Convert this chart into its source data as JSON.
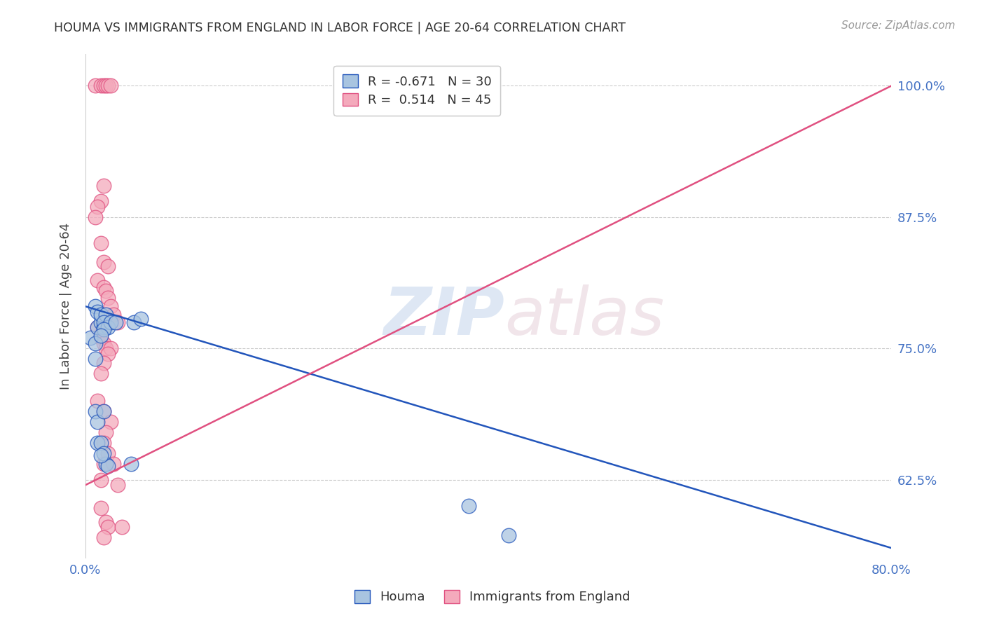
{
  "title": "HOUMA VS IMMIGRANTS FROM ENGLAND IN LABOR FORCE | AGE 20-64 CORRELATION CHART",
  "source": "Source: ZipAtlas.com",
  "ylabel": "In Labor Force | Age 20-64",
  "xlim": [
    0.0,
    0.8
  ],
  "ylim": [
    0.55,
    1.03
  ],
  "xticks": [
    0.0,
    0.1,
    0.2,
    0.3,
    0.4,
    0.5,
    0.6,
    0.7,
    0.8
  ],
  "xticklabels": [
    "0.0%",
    "",
    "",
    "",
    "",
    "",
    "",
    "",
    "80.0%"
  ],
  "yticks": [
    0.625,
    0.75,
    0.875,
    1.0
  ],
  "yticklabels": [
    "62.5%",
    "75.0%",
    "87.5%",
    "100.0%"
  ],
  "legend_R_blue": "-0.671",
  "legend_N_blue": "30",
  "legend_R_pink": "0.514",
  "legend_N_pink": "45",
  "blue_color": "#A8C4E0",
  "pink_color": "#F4AABC",
  "blue_line_color": "#2255BB",
  "pink_line_color": "#E05080",
  "watermark_zip": "ZIP",
  "watermark_atlas": "atlas",
  "houma_x": [
    0.005,
    0.01,
    0.01,
    0.012,
    0.015,
    0.018,
    0.01,
    0.012,
    0.015,
    0.02,
    0.018,
    0.022,
    0.025,
    0.018,
    0.015,
    0.01,
    0.012,
    0.03,
    0.012,
    0.015,
    0.018,
    0.02,
    0.022,
    0.048,
    0.055,
    0.045,
    0.38,
    0.42,
    0.018,
    0.015
  ],
  "houma_y": [
    0.76,
    0.755,
    0.74,
    0.77,
    0.775,
    0.77,
    0.79,
    0.785,
    0.782,
    0.782,
    0.775,
    0.77,
    0.775,
    0.768,
    0.762,
    0.69,
    0.68,
    0.775,
    0.66,
    0.66,
    0.69,
    0.64,
    0.638,
    0.775,
    0.778,
    0.64,
    0.6,
    0.572,
    0.65,
    0.648
  ],
  "england_x": [
    0.01,
    0.015,
    0.018,
    0.02,
    0.022,
    0.025,
    0.018,
    0.015,
    0.012,
    0.01,
    0.015,
    0.018,
    0.022,
    0.012,
    0.018,
    0.02,
    0.022,
    0.025,
    0.028,
    0.032,
    0.018,
    0.015,
    0.012,
    0.015,
    0.018,
    0.02,
    0.025,
    0.022,
    0.018,
    0.015,
    0.012,
    0.018,
    0.025,
    0.02,
    0.018,
    0.022,
    0.018,
    0.015,
    0.015,
    0.02,
    0.022,
    0.018,
    0.028,
    0.032,
    0.036
  ],
  "england_y": [
    1.0,
    1.0,
    1.0,
    1.0,
    1.0,
    1.0,
    0.905,
    0.89,
    0.885,
    0.875,
    0.85,
    0.832,
    0.828,
    0.815,
    0.808,
    0.805,
    0.798,
    0.79,
    0.782,
    0.775,
    0.77,
    0.765,
    0.77,
    0.76,
    0.755,
    0.75,
    0.75,
    0.745,
    0.736,
    0.726,
    0.7,
    0.69,
    0.68,
    0.67,
    0.66,
    0.65,
    0.64,
    0.625,
    0.598,
    0.585,
    0.58,
    0.57,
    0.64,
    0.62,
    0.58
  ],
  "blue_trend_x": [
    0.0,
    0.8
  ],
  "blue_trend_y": [
    0.79,
    0.56
  ],
  "pink_trend_x": [
    0.0,
    0.8
  ],
  "pink_trend_y": [
    0.62,
    1.0
  ]
}
